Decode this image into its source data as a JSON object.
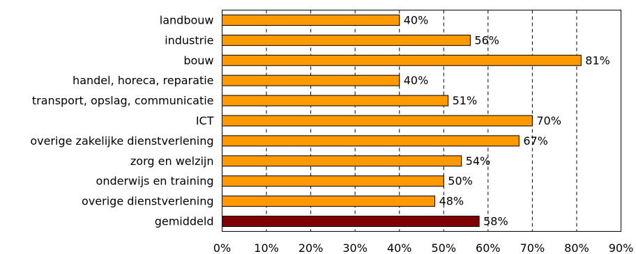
{
  "chart_data": {
    "type": "bar",
    "orientation": "horizontal",
    "categories": [
      "landbouw",
      "industrie",
      "bouw",
      "handel, horeca, reparatie",
      "transport, opslag, communicatie",
      "ICT",
      "overige zakelijke dienstverlening",
      "zorg en welzijn",
      "onderwijs en training",
      "overige dienstverlening",
      "gemiddeld"
    ],
    "values": [
      40,
      56,
      81,
      40,
      51,
      70,
      67,
      54,
      50,
      48,
      58
    ],
    "value_labels": [
      "40%",
      "56%",
      "81%",
      "40%",
      "51%",
      "70%",
      "67%",
      "54%",
      "50%",
      "48%",
      "58%"
    ],
    "xlim": [
      0,
      90
    ],
    "xticks": [
      0,
      10,
      20,
      30,
      40,
      50,
      60,
      70,
      80,
      90
    ],
    "xtick_labels": [
      "0%",
      "10%",
      "20%",
      "30%",
      "40%",
      "50%",
      "60%",
      "70%",
      "80%",
      "90%"
    ],
    "grid": "vertical dashed",
    "highlight_index": 10,
    "colors": {
      "bar": "#ff9900",
      "highlight_bar": "#7f0000",
      "bar_edge": "#000000",
      "grid": "#000000"
    }
  }
}
